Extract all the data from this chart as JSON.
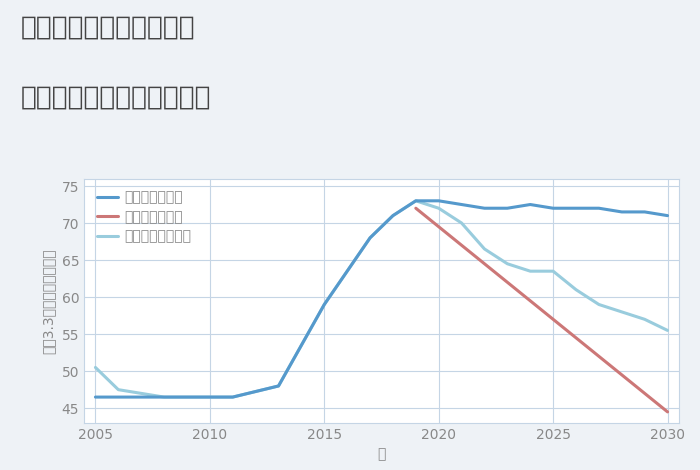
{
  "title_line1": "福岡県太宰府市大佐野の",
  "title_line2": "中古マンションの価格推移",
  "xlabel": "年",
  "ylabel": "坪（3.3㎡）単価（万円）",
  "background_color": "#eef2f6",
  "plot_background_color": "#ffffff",
  "grid_color": "#c5d5e5",
  "title_color": "#444444",
  "axis_label_color": "#888888",
  "tick_label_color": "#888888",
  "good_scenario": {
    "label": "グッドシナリオ",
    "color": "#5599cc",
    "x": [
      2005,
      2007,
      2008,
      2009,
      2010,
      2011,
      2013,
      2015,
      2017,
      2018,
      2019,
      2020,
      2021,
      2022,
      2023,
      2024,
      2025,
      2026,
      2027,
      2028,
      2029,
      2030
    ],
    "y": [
      46.5,
      46.5,
      46.5,
      46.5,
      46.5,
      46.5,
      48,
      59,
      68,
      71,
      73,
      73,
      72.5,
      72,
      72,
      72.5,
      72,
      72,
      72,
      71.5,
      71.5,
      71
    ]
  },
  "bad_scenario": {
    "label": "バッドシナリオ",
    "color": "#cc7777",
    "x": [
      2019,
      2030
    ],
    "y": [
      72,
      44.5
    ]
  },
  "normal_scenario": {
    "label": "ノーマルシナリオ",
    "color": "#99ccdd",
    "x": [
      2005,
      2006,
      2007,
      2008,
      2009,
      2010,
      2011,
      2013,
      2015,
      2017,
      2018,
      2019,
      2020,
      2021,
      2022,
      2023,
      2024,
      2025,
      2026,
      2027,
      2028,
      2029,
      2030
    ],
    "y": [
      50.5,
      47.5,
      47,
      46.5,
      46.5,
      46.5,
      46.5,
      48,
      59,
      68,
      71,
      73,
      72,
      70,
      66.5,
      64.5,
      63.5,
      63.5,
      61,
      59,
      58,
      57,
      55.5
    ]
  },
  "ylim": [
    43,
    76
  ],
  "yticks": [
    45,
    50,
    55,
    60,
    65,
    70,
    75
  ],
  "xlim": [
    2004.5,
    2030.5
  ],
  "xticks": [
    2005,
    2010,
    2015,
    2020,
    2025,
    2030
  ],
  "linewidth": 2.2,
  "title_fontsize": 19,
  "axis_fontsize": 10,
  "tick_fontsize": 10,
  "legend_fontsize": 10
}
